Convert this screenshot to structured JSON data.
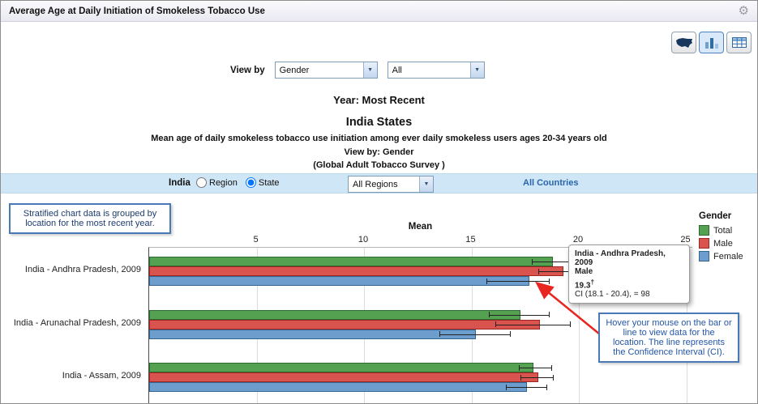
{
  "header": {
    "title": "Average Age at Daily Initiation of Smokeless Tobacco Use",
    "gear_icon": "⚙"
  },
  "viewby": {
    "label": "View by",
    "select1": "Gender",
    "select2": "All"
  },
  "headings": {
    "year": "Year: Most Recent",
    "title": "India States",
    "subtitle": "Mean age of daily smokeless tobacco use initiation among ever daily smokeless users ages 20-34 years old",
    "view_by": "View by: Gender",
    "source": "(Global Adult Tobacco Survey )"
  },
  "locbar": {
    "country": "India",
    "radios": [
      {
        "label": "Region",
        "checked": false
      },
      {
        "label": "State",
        "checked": true
      }
    ],
    "region_select": "All Regions",
    "link": "All Countries"
  },
  "callouts": {
    "grouped": "Stratified chart data is grouped by location for the most recent year.",
    "hover": "Hover your mouse on the bar or line to view data for the location. The line represents the Confidence Interval (CI)."
  },
  "tooltip": {
    "location": "India - Andhra Pradesh, 2009",
    "series": "Male",
    "value": "19.3",
    "value_sup": "†",
    "ci": "CI (18.1 - 20.4), = 98"
  },
  "chart_data": {
    "type": "bar",
    "orientation": "horizontal",
    "title": "Mean",
    "legend_title": "Gender",
    "legend_position": "right",
    "grid": true,
    "xticks": [
      5,
      10,
      15,
      20,
      25
    ],
    "xlim": [
      0,
      25.3
    ],
    "categories": [
      "India - Andhra Pradesh, 2009",
      "India - Arunachal Pradesh, 2009",
      "India - Assam, 2009"
    ],
    "series": [
      {
        "name": "Total",
        "color": "#55a152",
        "border": "#2d6a2f",
        "values": [
          18.8,
          17.3,
          17.9
        ],
        "ci": [
          [
            17.8,
            19.8
          ],
          [
            15.8,
            18.6
          ],
          [
            17.2,
            18.7
          ]
        ]
      },
      {
        "name": "Male",
        "color": "#d9534f",
        "border": "#a02622",
        "values": [
          19.3,
          18.2,
          18.1
        ],
        "ci": [
          [
            18.1,
            20.4
          ],
          [
            16.1,
            19.6
          ],
          [
            17.3,
            18.8
          ]
        ]
      },
      {
        "name": "Female",
        "color": "#6d9dcc",
        "border": "#33658f",
        "values": [
          17.7,
          15.2,
          17.6
        ],
        "ci": [
          [
            15.7,
            18.6
          ],
          [
            13.5,
            16.8
          ],
          [
            16.6,
            18.5
          ]
        ]
      }
    ]
  }
}
